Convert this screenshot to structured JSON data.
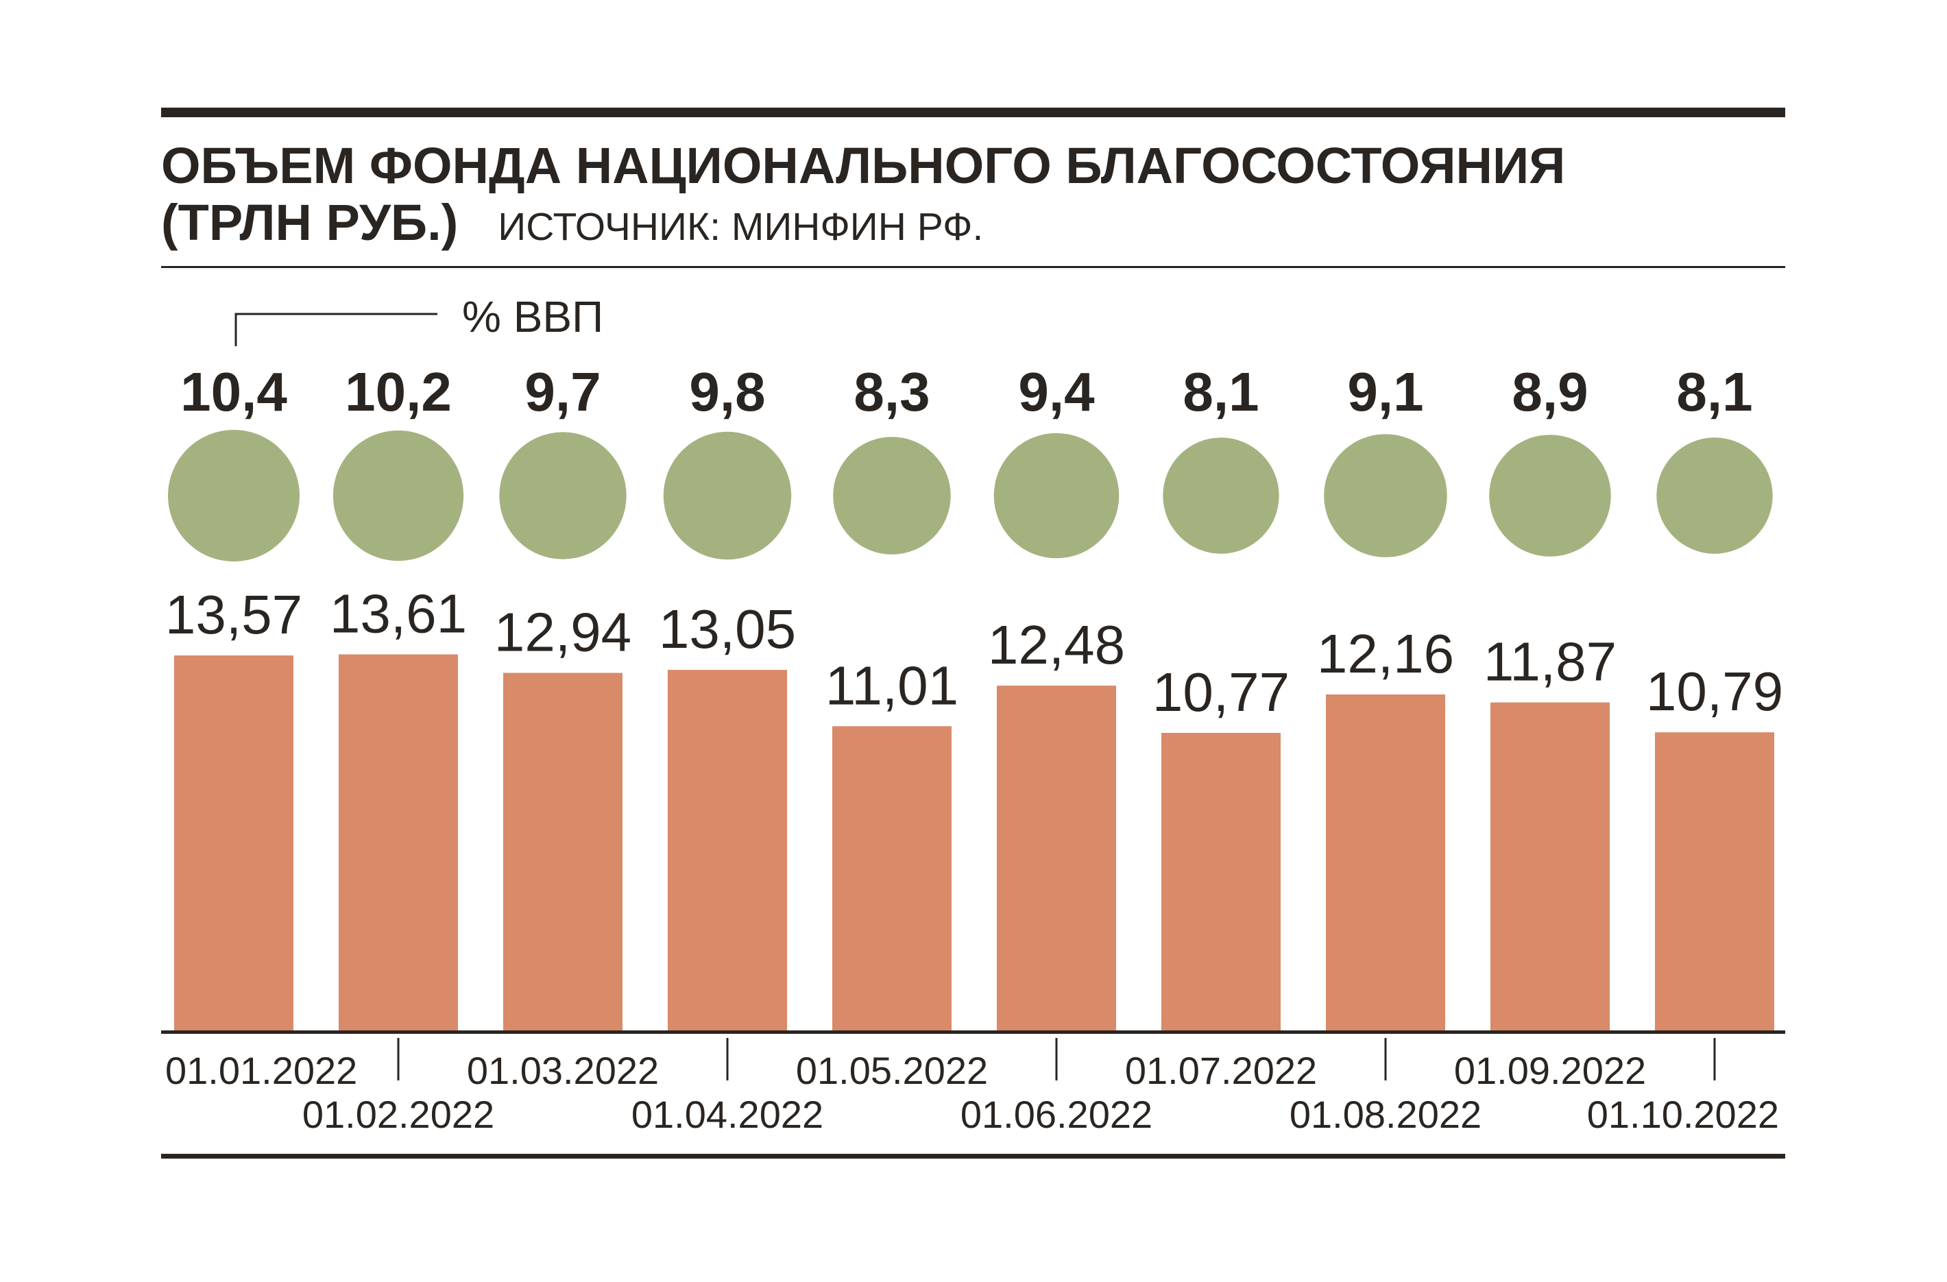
{
  "colors": {
    "text": "#2a2521",
    "background": "#ffffff"
  },
  "chart_data": {
    "type": "bar",
    "title": "ОБЪЕМ ФОНДА НАЦИОНАЛЬНОГО БЛАГОСОСТОЯНИЯ",
    "title_unit": "(ТРЛН РУБ.)",
    "source": "ИСТОЧНИК: МИНФИН РФ.",
    "categories": [
      "01.01.2022",
      "01.02.2022",
      "01.03.2022",
      "01.04.2022",
      "01.05.2022",
      "01.06.2022",
      "01.07.2022",
      "01.08.2022",
      "01.09.2022",
      "01.10.2022"
    ],
    "series": [
      {
        "mark": "bar",
        "values": [
          13.57,
          13.61,
          12.94,
          13.05,
          11.01,
          12.48,
          10.77,
          12.16,
          11.87,
          10.79
        ],
        "data_labels": [
          "13,57",
          "13,61",
          "12,94",
          "13,05",
          "11,01",
          "12,48",
          "10,77",
          "12,16",
          "11,87",
          "10,79"
        ],
        "color": "#d88a69"
      },
      {
        "name": "% ВВП",
        "mark": "circle",
        "values": [
          10.4,
          10.2,
          9.7,
          9.8,
          8.3,
          9.4,
          8.1,
          9.1,
          8.9,
          8.1
        ],
        "data_labels": [
          "10,4",
          "10,2",
          "9,7",
          "9,8",
          "8,3",
          "9,4",
          "8,1",
          "9,1",
          "8,9",
          "8,1"
        ],
        "color": "#a4b280"
      }
    ],
    "grid": false
  }
}
